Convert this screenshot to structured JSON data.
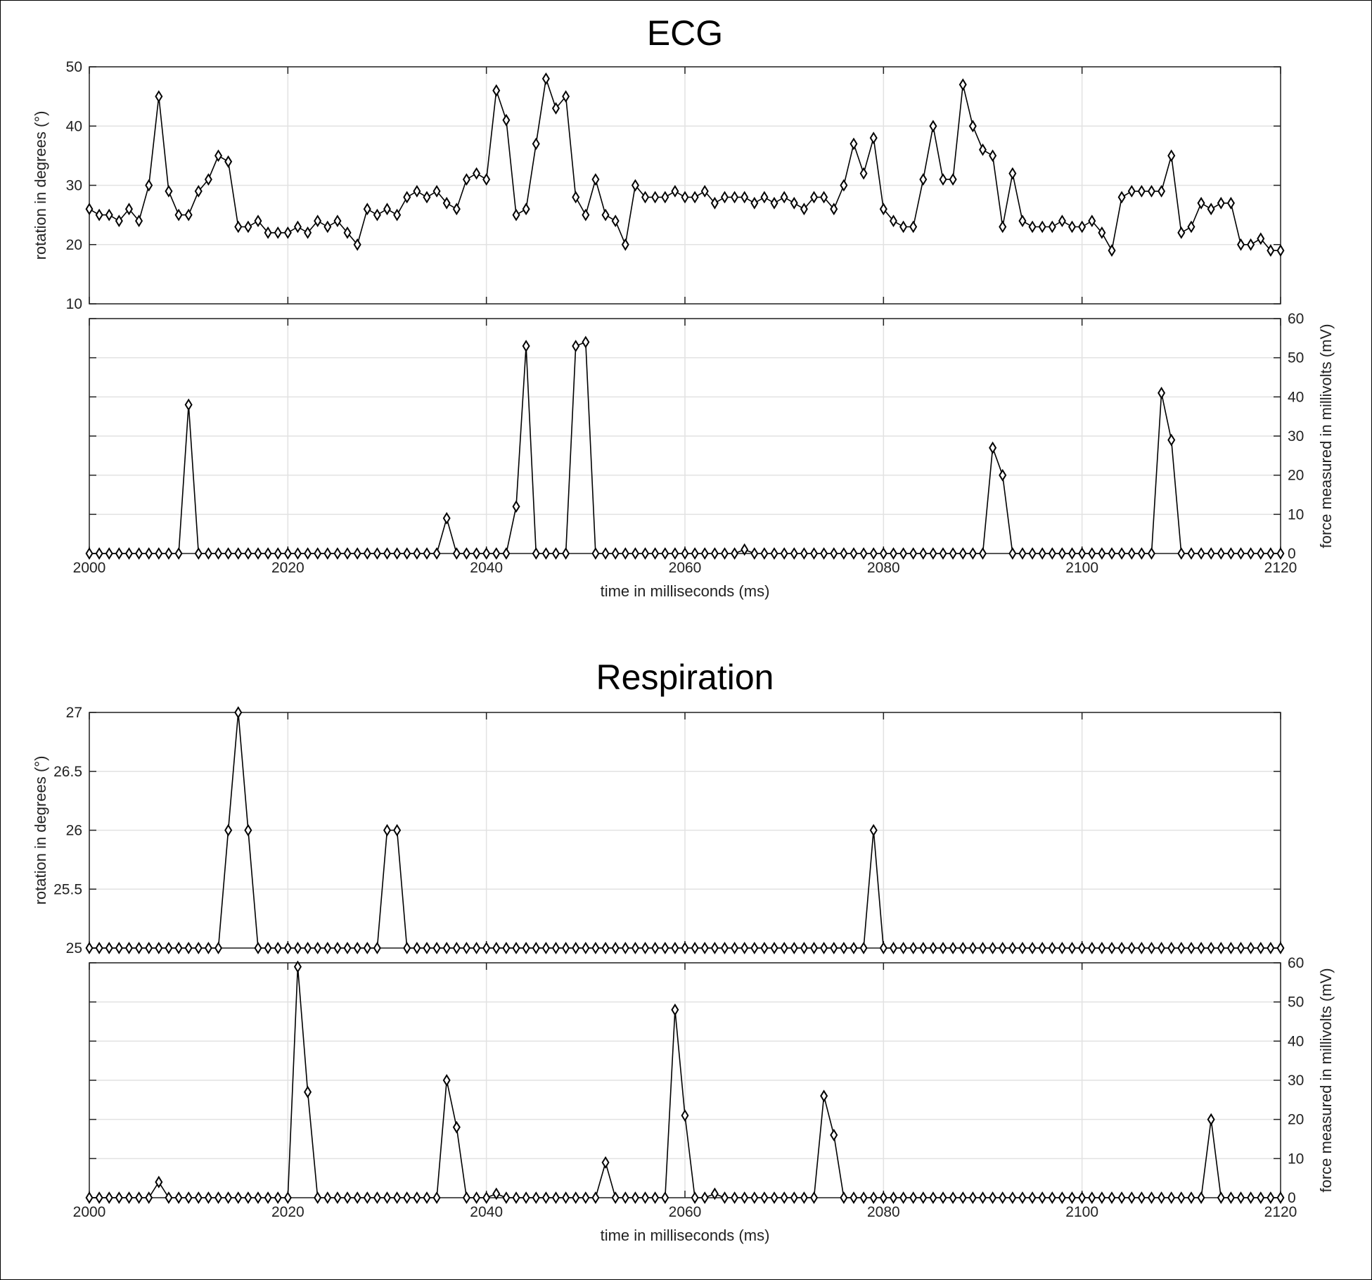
{
  "figure": {
    "background": "#ffffff",
    "titles": [
      "ECG",
      "Respiration"
    ]
  },
  "chart_data": [
    {
      "type": "line",
      "group": "ECG",
      "title": "ECG",
      "xlabel": "",
      "ylabel": "rotation in degrees (°)",
      "y_axis_side": "left",
      "xlim": [
        2000,
        2120
      ],
      "ylim": [
        10,
        50
      ],
      "xticks": [
        2000,
        2020,
        2040,
        2060,
        2080,
        2100,
        2120
      ],
      "xtick_labels_shown": false,
      "yticks": [
        10,
        20,
        30,
        40,
        50
      ],
      "grid": true,
      "marker": "diamond",
      "x_start": 2000,
      "x_step": 1,
      "values": [
        26,
        25,
        25,
        24,
        26,
        24,
        30,
        45,
        29,
        25,
        25,
        29,
        31,
        35,
        34,
        23,
        23,
        24,
        22,
        22,
        22,
        23,
        22,
        24,
        23,
        24,
        22,
        20,
        26,
        25,
        26,
        25,
        28,
        29,
        28,
        29,
        27,
        26,
        31,
        32,
        31,
        46,
        41,
        25,
        26,
        37,
        48,
        43,
        45,
        28,
        25,
        31,
        25,
        24,
        20,
        30,
        28,
        28,
        28,
        29,
        28,
        28,
        29,
        27,
        28,
        28,
        28,
        27,
        28,
        27,
        28,
        27,
        26,
        28,
        28,
        26,
        30,
        37,
        32,
        38,
        26,
        24,
        23,
        23,
        31,
        40,
        31,
        31,
        47,
        40,
        36,
        35,
        23,
        32,
        24,
        23,
        23,
        23,
        24,
        23,
        23,
        24,
        22,
        19,
        28,
        29,
        29,
        29,
        29,
        35,
        22,
        23,
        27,
        26,
        27,
        27,
        20,
        20,
        21,
        19,
        19
      ]
    },
    {
      "type": "line",
      "group": "ECG",
      "title": "",
      "xlabel": "time in milliseconds (ms)",
      "ylabel": "force measured in millivolts (mV)",
      "y_axis_side": "right",
      "xlim": [
        2000,
        2120
      ],
      "ylim": [
        0,
        60
      ],
      "xticks": [
        2000,
        2020,
        2040,
        2060,
        2080,
        2100,
        2120
      ],
      "xtick_labels_shown": true,
      "yticks": [
        0,
        10,
        20,
        30,
        40,
        50,
        60
      ],
      "grid": true,
      "marker": "diamond",
      "x_start": 2000,
      "x_step": 1,
      "values": [
        0,
        0,
        0,
        0,
        0,
        0,
        0,
        0,
        0,
        0,
        38,
        0,
        0,
        0,
        0,
        0,
        0,
        0,
        0,
        0,
        0,
        0,
        0,
        0,
        0,
        0,
        0,
        0,
        0,
        0,
        0,
        0,
        0,
        0,
        0,
        0,
        9,
        0,
        0,
        0,
        0,
        0,
        0,
        12,
        53,
        0,
        0,
        0,
        0,
        53,
        54,
        0,
        0,
        0,
        0,
        0,
        0,
        0,
        0,
        0,
        0,
        0,
        0,
        0,
        0,
        0,
        1,
        0,
        0,
        0,
        0,
        0,
        0,
        0,
        0,
        0,
        0,
        0,
        0,
        0,
        0,
        0,
        0,
        0,
        0,
        0,
        0,
        0,
        0,
        0,
        0,
        27,
        20,
        0,
        0,
        0,
        0,
        0,
        0,
        0,
        0,
        0,
        0,
        0,
        0,
        0,
        0,
        0,
        41,
        29,
        0,
        0,
        0,
        0,
        0,
        0,
        0,
        0,
        0,
        0,
        0
      ]
    },
    {
      "type": "line",
      "group": "Respiration",
      "title": "Respiration",
      "xlabel": "",
      "ylabel": "rotation in degrees (°)",
      "y_axis_side": "left",
      "xlim": [
        2000,
        2120
      ],
      "ylim": [
        25,
        27
      ],
      "xticks": [
        2000,
        2020,
        2040,
        2060,
        2080,
        2100,
        2120
      ],
      "xtick_labels_shown": false,
      "yticks": [
        25,
        25.5,
        26,
        26.5,
        27
      ],
      "grid": true,
      "marker": "diamond",
      "x_start": 2000,
      "x_step": 1,
      "values": [
        25,
        25,
        25,
        25,
        25,
        25,
        25,
        25,
        25,
        25,
        25,
        25,
        25,
        25,
        26,
        27,
        26,
        25,
        25,
        25,
        25,
        25,
        25,
        25,
        25,
        25,
        25,
        25,
        25,
        25,
        26,
        26,
        25,
        25,
        25,
        25,
        25,
        25,
        25,
        25,
        25,
        25,
        25,
        25,
        25,
        25,
        25,
        25,
        25,
        25,
        25,
        25,
        25,
        25,
        25,
        25,
        25,
        25,
        25,
        25,
        25,
        25,
        25,
        25,
        25,
        25,
        25,
        25,
        25,
        25,
        25,
        25,
        25,
        25,
        25,
        25,
        25,
        25,
        25,
        26,
        25,
        25,
        25,
        25,
        25,
        25,
        25,
        25,
        25,
        25,
        25,
        25,
        25,
        25,
        25,
        25,
        25,
        25,
        25,
        25,
        25,
        25,
        25,
        25,
        25,
        25,
        25,
        25,
        25,
        25,
        25,
        25,
        25,
        25,
        25,
        25,
        25,
        25,
        25,
        25,
        25
      ]
    },
    {
      "type": "line",
      "group": "Respiration",
      "title": "",
      "xlabel": "time in milliseconds (ms)",
      "ylabel": "force measured in millivolts (mV)",
      "y_axis_side": "right",
      "xlim": [
        2000,
        2120
      ],
      "ylim": [
        0,
        60
      ],
      "xticks": [
        2000,
        2020,
        2040,
        2060,
        2080,
        2100,
        2120
      ],
      "xtick_labels_shown": true,
      "yticks": [
        0,
        10,
        20,
        30,
        40,
        50,
        60
      ],
      "grid": true,
      "marker": "diamond",
      "x_start": 2000,
      "x_step": 1,
      "values": [
        0,
        0,
        0,
        0,
        0,
        0,
        0,
        4,
        0,
        0,
        0,
        0,
        0,
        0,
        0,
        0,
        0,
        0,
        0,
        0,
        0,
        59,
        27,
        0,
        0,
        0,
        0,
        0,
        0,
        0,
        0,
        0,
        0,
        0,
        0,
        0,
        30,
        18,
        0,
        0,
        0,
        1,
        0,
        0,
        0,
        0,
        0,
        0,
        0,
        0,
        0,
        0,
        9,
        0,
        0,
        0,
        0,
        0,
        0,
        48,
        21,
        0,
        0,
        1,
        0,
        0,
        0,
        0,
        0,
        0,
        0,
        0,
        0,
        0,
        26,
        16,
        0,
        0,
        0,
        0,
        0,
        0,
        0,
        0,
        0,
        0,
        0,
        0,
        0,
        0,
        0,
        0,
        0,
        0,
        0,
        0,
        0,
        0,
        0,
        0,
        0,
        0,
        0,
        0,
        0,
        0,
        0,
        0,
        0,
        0,
        0,
        0,
        0,
        20,
        0,
        0,
        0,
        0,
        0,
        0,
        0
      ]
    }
  ]
}
